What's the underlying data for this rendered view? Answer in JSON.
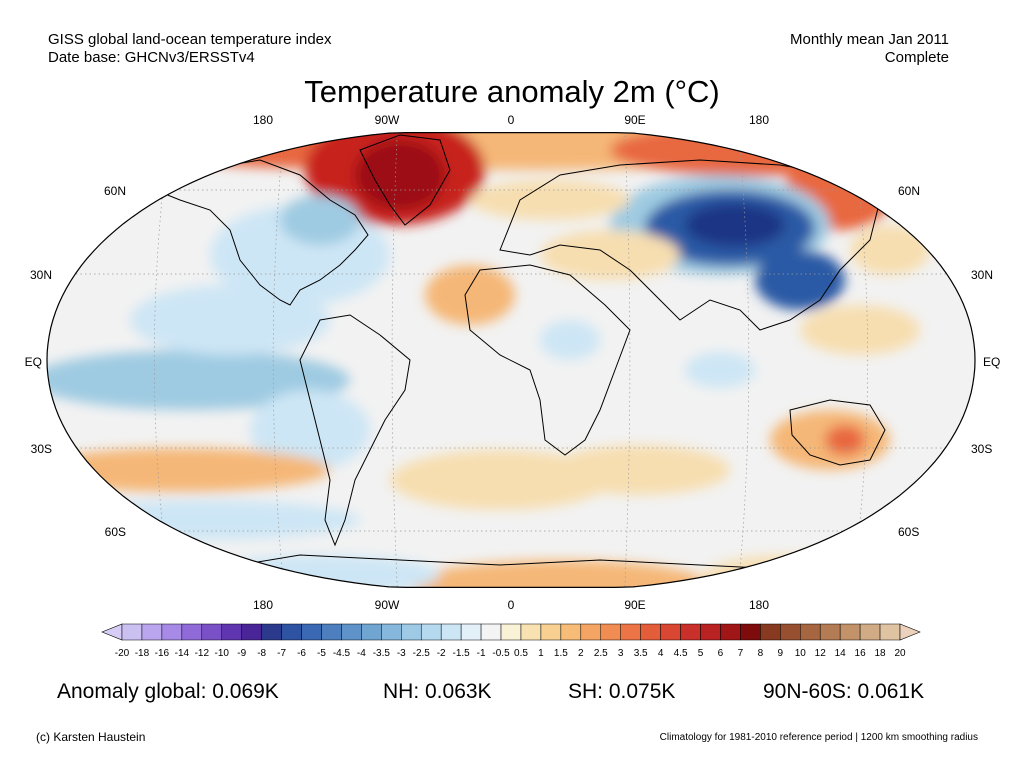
{
  "header": {
    "left_line1": "GISS global land-ocean temperature index",
    "left_line2": "Date base: GHCNv3/ERSSTv4",
    "right_line1": "Monthly mean Jan 2011",
    "right_line2": "Complete"
  },
  "title": "Temperature anomaly 2m (°C)",
  "map": {
    "lon_labels": [
      "180",
      "90W",
      "0",
      "90E",
      "180"
    ],
    "lat_labels": [
      "60N",
      "30N",
      "EQ",
      "30S",
      "60S"
    ],
    "colors": {
      "background": "#f2f2f2",
      "warm_light": "#f7deb0",
      "warm_mid": "#f5b777",
      "warm_strong": "#e8683f",
      "hot": "#c7231f",
      "cool_light": "#cde6f5",
      "cool_mid": "#9fcbe2",
      "cold": "#2a5aa5",
      "very_cold": "#1c3585"
    }
  },
  "colorbar": {
    "labels": [
      "-20",
      "-18",
      "-16",
      "-14",
      "-12",
      "-10",
      "-9",
      "-8",
      "-7",
      "-6",
      "-5",
      "-4.5",
      "-4",
      "-3.5",
      "-3",
      "-2.5",
      "-2",
      "-1.5",
      "-1",
      "-0.5",
      "0.5",
      "1",
      "1.5",
      "2",
      "2.5",
      "3",
      "3.5",
      "4",
      "4.5",
      "5",
      "6",
      "7",
      "8",
      "9",
      "10",
      "12",
      "14",
      "16",
      "18",
      "20"
    ],
    "colors": [
      "#cbc0f2",
      "#b9a6ee",
      "#a68ae6",
      "#8f6ad8",
      "#7a50c6",
      "#5f36b0",
      "#4a2598",
      "#2c3a8e",
      "#2f53a3",
      "#3b68b2",
      "#4d7fbe",
      "#5e92c8",
      "#70a5d2",
      "#86b7dc",
      "#9ecae6",
      "#b5d9ee",
      "#cde6f5",
      "#e3f0f8",
      "#f4f4f4",
      "#faf2d6",
      "#f8e2b2",
      "#f7d092",
      "#f6bc78",
      "#f4a564",
      "#f18d53",
      "#ec7447",
      "#e45d3b",
      "#d94631",
      "#c9302a",
      "#b82222",
      "#a01616",
      "#7e0c0c",
      "#873a20",
      "#96502f",
      "#a56640",
      "#b37c55",
      "#c2936b",
      "#d1ab85",
      "#e0c4a2"
    ]
  },
  "stats": {
    "global": "Anomaly global: 0.069K",
    "nh": "NH: 0.063K",
    "sh": "SH: 0.075K",
    "band": "90N-60S: 0.061K"
  },
  "footer": {
    "credit": "(c) Karsten Haustein",
    "note": "Climatology for 1981-2010 reference period | 1200 km smoothing radius"
  }
}
